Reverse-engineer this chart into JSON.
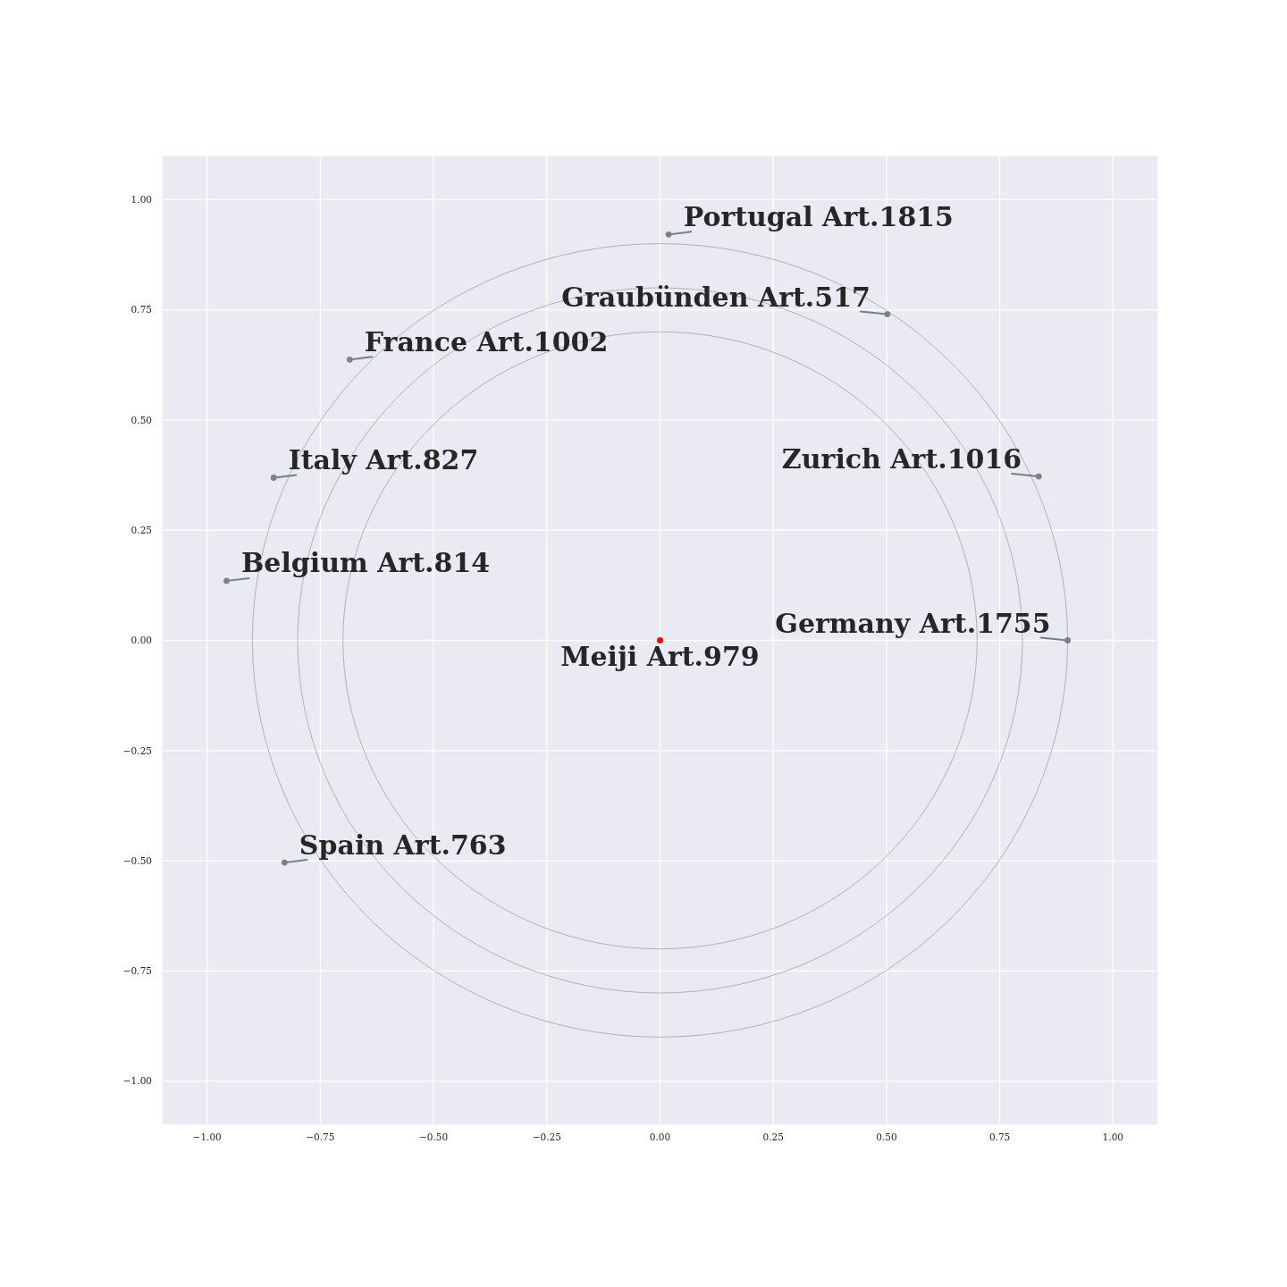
{
  "chart_data": {
    "type": "scatter",
    "xlim": [
      -1.1,
      1.1
    ],
    "ylim": [
      -1.1,
      1.1
    ],
    "xticks": [
      {
        "value": -1,
        "label": "−1.00"
      },
      {
        "value": -0.75,
        "label": "−0.75"
      },
      {
        "value": -0.5,
        "label": "−0.50"
      },
      {
        "value": -0.25,
        "label": "−0.25"
      },
      {
        "value": 0,
        "label": "0.00"
      },
      {
        "value": 0.25,
        "label": "0.25"
      },
      {
        "value": 0.5,
        "label": "0.50"
      },
      {
        "value": 0.75,
        "label": "0.75"
      },
      {
        "value": 1,
        "label": "1.00"
      }
    ],
    "yticks": [
      {
        "value": -1,
        "label": "−1.00"
      },
      {
        "value": -0.75,
        "label": "−0.75"
      },
      {
        "value": -0.5,
        "label": "−0.50"
      },
      {
        "value": -0.25,
        "label": "−0.25"
      },
      {
        "value": 0,
        "label": "0.00"
      },
      {
        "value": 0.25,
        "label": "0.25"
      },
      {
        "value": 0.5,
        "label": "0.50"
      },
      {
        "value": 0.75,
        "label": "0.75"
      },
      {
        "value": 1,
        "label": "1.00"
      }
    ],
    "grid": true,
    "series": [
      {
        "color": "#808080",
        "marker": "circle",
        "x": [
          0.019,
          0.502,
          -0.685,
          -0.853,
          -0.957,
          0.836,
          0.9,
          -0.829
        ],
        "values": [
          0.921,
          0.74,
          0.637,
          0.369,
          0.135,
          0.372,
          0,
          -0.504
        ],
        "value_labels": [
          "Portugal Art.1815",
          "Graubünden Art.517",
          "France Art.1002",
          "Italy Art.827",
          "Belgium Art.814",
          "Zurich Art.1016",
          "Germany Art.1755",
          "Spain Art.763"
        ]
      },
      {
        "color": "#ff0000",
        "marker": "circle",
        "x": [
          0
        ],
        "values": [
          0
        ],
        "value_labels": [
          "Meiji Art.979"
        ]
      }
    ]
  }
}
